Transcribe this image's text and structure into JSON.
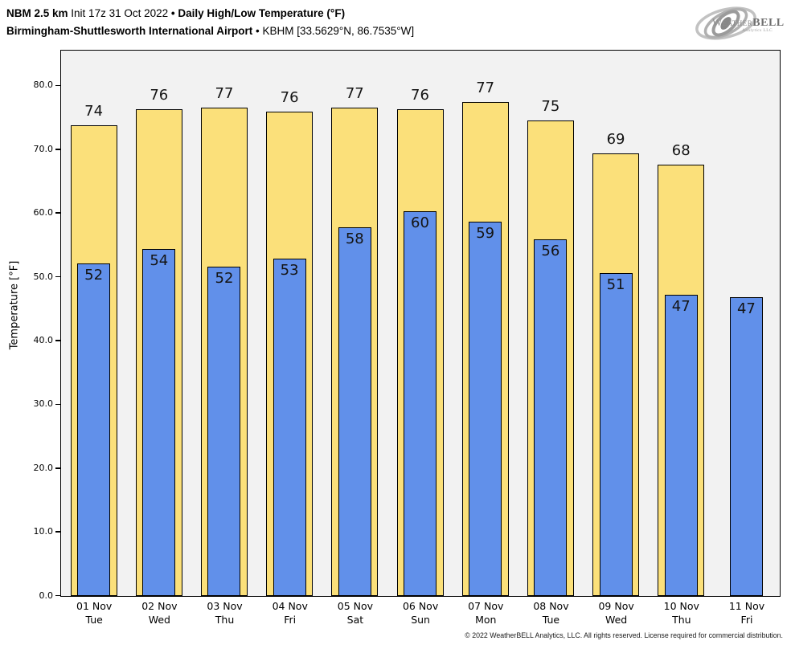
{
  "header": {
    "line1": {
      "model": "NBM 2.5 km",
      "init": "Init 17z 31 Oct 2022",
      "bullet": "•",
      "title": "Daily High/Low Temperature (°F)"
    },
    "line2": {
      "station": "Birmingham-Shuttlesworth International Airport",
      "bullet": "•",
      "station_id": "KBHM [33.5629°N, 86.7535°W]"
    }
  },
  "logo": {
    "brand_weather": "Weather",
    "brand_bell": "BELL",
    "subtext": "Analytics LLC"
  },
  "footer": {
    "copyright": "© 2022 WeatherBELL Analytics, LLC. All rights reserved. License required for commercial distribution."
  },
  "chart_data": {
    "type": "bar",
    "title": "Daily High/Low Temperature (°F)",
    "xlabel": "",
    "ylabel": "Temperature [°F]",
    "ylim": [
      0,
      85.4
    ],
    "yticks": [
      0,
      10,
      20,
      30,
      40,
      50,
      60,
      70,
      80
    ],
    "ytick_labels": [
      "0.0",
      "10.0",
      "20.0",
      "30.0",
      "40.0",
      "50.0",
      "60.0",
      "70.0",
      "80.0"
    ],
    "grid": false,
    "legend": "none",
    "plot_bg_color": "#f2f2f2",
    "bar_edge_color": "#000000",
    "categories": [
      {
        "date": "01 Nov",
        "day": "Tue"
      },
      {
        "date": "02 Nov",
        "day": "Wed"
      },
      {
        "date": "03 Nov",
        "day": "Thu"
      },
      {
        "date": "04 Nov",
        "day": "Fri"
      },
      {
        "date": "05 Nov",
        "day": "Sat"
      },
      {
        "date": "06 Nov",
        "day": "Sun"
      },
      {
        "date": "07 Nov",
        "day": "Mon"
      },
      {
        "date": "08 Nov",
        "day": "Tue"
      },
      {
        "date": "09 Nov",
        "day": "Wed"
      },
      {
        "date": "10 Nov",
        "day": "Thu"
      },
      {
        "date": "11 Nov",
        "day": "Fri"
      }
    ],
    "series": [
      {
        "name": "Daily High",
        "color": "#fbe07a",
        "values": [
          74,
          76,
          77,
          76,
          77,
          76,
          77,
          75,
          69,
          68,
          null
        ],
        "bar_tops_exact": [
          73.8,
          76.3,
          76.6,
          75.9,
          76.6,
          76.3,
          77.5,
          74.6,
          69.4,
          67.7,
          null
        ]
      },
      {
        "name": "Daily Low",
        "color": "#6190ea",
        "values": [
          52,
          54,
          52,
          53,
          58,
          60,
          59,
          56,
          51,
          47,
          47
        ],
        "bar_tops_exact": [
          52.2,
          54.4,
          51.7,
          52.9,
          57.8,
          60.3,
          58.7,
          55.9,
          50.6,
          47.2,
          46.8
        ]
      }
    ]
  }
}
